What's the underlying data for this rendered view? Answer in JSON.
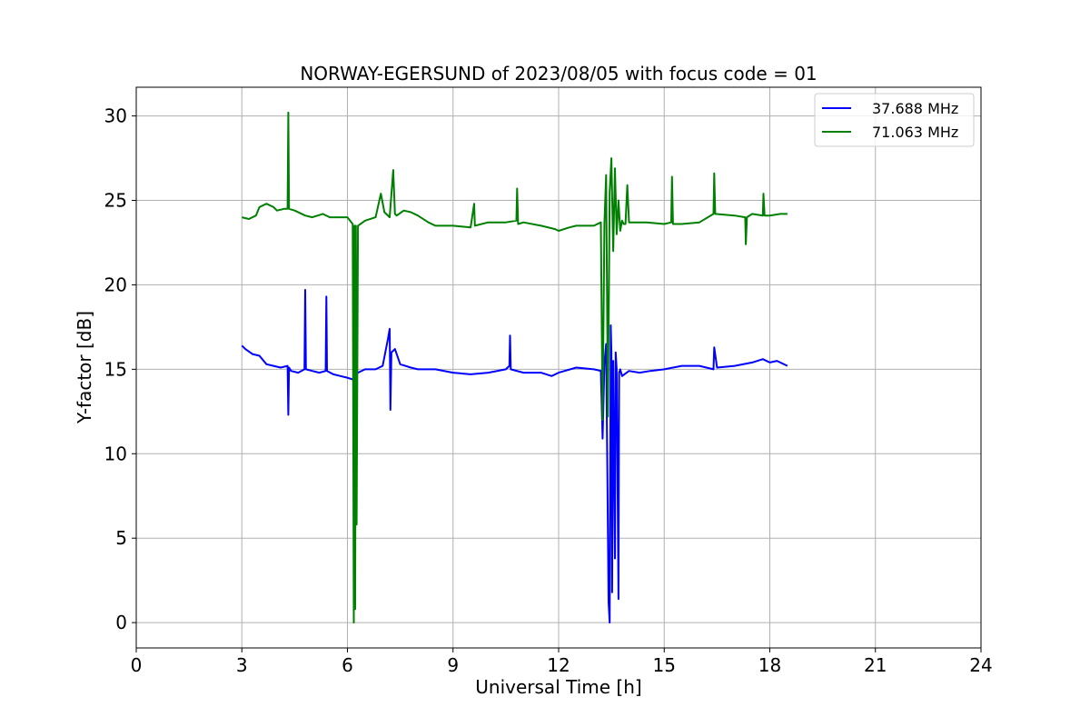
{
  "chart_data": {
    "type": "line",
    "title": "NORWAY-EGERSUND of 2023/08/05 with focus code = 01",
    "xlabel": "Universal Time [h]",
    "ylabel": "Y-factor [dB]",
    "xlim": [
      0,
      24
    ],
    "ylim": [
      -1.5,
      31.7
    ],
    "x_ticks": [
      0,
      3,
      6,
      9,
      12,
      15,
      18,
      21,
      24
    ],
    "y_ticks": [
      0,
      5,
      10,
      15,
      20,
      25,
      30
    ],
    "grid": true,
    "legend_position": "top-right",
    "series": [
      {
        "name": "37.688 MHz",
        "color": "#0000ff",
        "x": [
          3.0,
          3.1,
          3.3,
          3.5,
          3.7,
          3.9,
          4.1,
          4.3,
          4.32,
          4.34,
          4.4,
          4.6,
          4.78,
          4.8,
          4.82,
          5.0,
          5.2,
          5.38,
          5.4,
          5.42,
          5.6,
          5.8,
          6.0,
          6.15,
          6.2,
          6.22,
          6.25,
          6.3,
          6.5,
          6.8,
          7.0,
          7.15,
          7.2,
          7.22,
          7.25,
          7.35,
          7.5,
          7.8,
          8.0,
          8.5,
          9.0,
          9.5,
          10.0,
          10.5,
          10.6,
          10.62,
          10.64,
          11.0,
          11.5,
          11.8,
          12.0,
          12.5,
          13.0,
          13.2,
          13.25,
          13.3,
          13.35,
          13.42,
          13.45,
          13.48,
          13.5,
          13.52,
          13.55,
          13.6,
          13.62,
          13.65,
          13.7,
          13.72,
          13.75,
          13.8,
          14.0,
          14.3,
          14.6,
          15.0,
          15.5,
          16.0,
          16.4,
          16.42,
          16.5,
          17.0,
          17.5,
          17.8,
          18.0,
          18.2,
          18.5
        ],
        "values": [
          16.4,
          16.2,
          15.9,
          15.8,
          15.3,
          15.2,
          15.1,
          15.2,
          12.3,
          15.1,
          14.9,
          14.8,
          15.0,
          19.7,
          15.0,
          14.9,
          14.8,
          14.9,
          19.3,
          14.9,
          14.7,
          14.6,
          14.5,
          14.4,
          14.6,
          12.6,
          14.7,
          14.8,
          15.0,
          15.0,
          15.2,
          16.8,
          17.4,
          12.6,
          16.0,
          16.2,
          15.3,
          15.1,
          15.0,
          15.0,
          14.8,
          14.7,
          14.8,
          15.0,
          15.2,
          17.0,
          15.0,
          14.8,
          14.8,
          14.6,
          14.8,
          15.1,
          15.0,
          14.9,
          10.9,
          15.3,
          16.5,
          1.2,
          0.0,
          17.6,
          16.0,
          1.8,
          15.5,
          3.8,
          16.0,
          15.0,
          1.4,
          14.8,
          15.0,
          14.6,
          14.9,
          14.8,
          14.9,
          15.0,
          15.2,
          15.2,
          15.0,
          16.3,
          15.1,
          15.2,
          15.4,
          15.6,
          15.4,
          15.5,
          15.2
        ]
      },
      {
        "name": "71.063 MHz",
        "color": "#008000",
        "x": [
          3.0,
          3.2,
          3.4,
          3.5,
          3.7,
          3.9,
          4.0,
          4.2,
          4.3,
          4.32,
          4.34,
          4.5,
          4.8,
          5.0,
          5.3,
          5.5,
          5.8,
          6.0,
          6.15,
          6.18,
          6.2,
          6.22,
          6.24,
          6.26,
          6.3,
          6.5,
          6.8,
          6.95,
          7.05,
          7.2,
          7.3,
          7.35,
          7.4,
          7.6,
          7.8,
          8.0,
          8.3,
          8.5,
          9.0,
          9.5,
          9.6,
          9.62,
          10.0,
          10.5,
          10.8,
          10.82,
          10.85,
          11.0,
          11.5,
          11.9,
          12.0,
          12.3,
          12.5,
          13.0,
          13.2,
          13.25,
          13.3,
          13.35,
          13.4,
          13.45,
          13.5,
          13.55,
          13.6,
          13.65,
          13.7,
          13.75,
          13.8,
          13.85,
          13.9,
          13.95,
          14.0,
          14.5,
          15.0,
          15.2,
          15.22,
          15.25,
          15.5,
          16.0,
          16.4,
          16.42,
          16.45,
          17.0,
          17.3,
          17.32,
          17.35,
          17.5,
          17.8,
          17.82,
          17.85,
          18.0,
          18.3,
          18.5
        ],
        "values": [
          24.0,
          23.9,
          24.1,
          24.6,
          24.8,
          24.6,
          24.4,
          24.5,
          24.5,
          30.2,
          24.5,
          24.4,
          24.1,
          24.0,
          24.2,
          24.0,
          24.0,
          24.0,
          23.6,
          0.0,
          23.5,
          0.8,
          23.5,
          5.8,
          23.5,
          23.8,
          24.0,
          25.4,
          24.3,
          24.0,
          26.8,
          24.2,
          24.1,
          24.4,
          24.3,
          24.1,
          23.7,
          23.5,
          23.5,
          23.4,
          24.8,
          23.5,
          23.7,
          23.7,
          23.8,
          25.7,
          23.6,
          23.7,
          23.5,
          23.3,
          23.2,
          23.4,
          23.5,
          23.5,
          23.7,
          12.0,
          23.6,
          26.5,
          12.2,
          25.5,
          27.5,
          22.0,
          26.9,
          23.0,
          25.0,
          23.2,
          23.8,
          23.6,
          23.6,
          25.9,
          23.7,
          23.7,
          23.6,
          23.7,
          26.4,
          23.6,
          23.6,
          23.7,
          24.2,
          26.6,
          24.2,
          24.1,
          24.0,
          22.4,
          24.0,
          24.2,
          24.1,
          25.4,
          24.1,
          24.1,
          24.2,
          24.2
        ]
      }
    ]
  }
}
